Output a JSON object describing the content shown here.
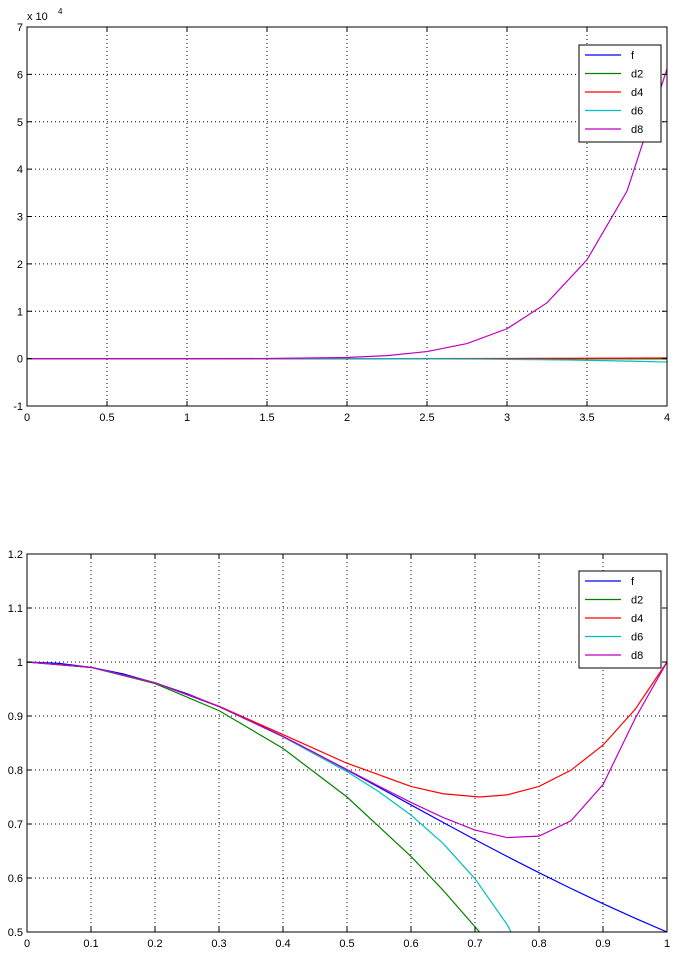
{
  "chart_data": [
    {
      "type": "line",
      "title": "",
      "xlabel": "",
      "ylabel": "",
      "xlim": [
        0,
        4
      ],
      "ylim": [
        -1,
        7
      ],
      "y_exponent_label": "x 10",
      "y_exponent_power": "4",
      "x_ticks": [
        0,
        0.5,
        1,
        1.5,
        2,
        2.5,
        3,
        3.5,
        4
      ],
      "x_tick_labels": [
        "0",
        "0.5",
        "1",
        "1.5",
        "2",
        "2.5",
        "3",
        "3.5",
        "4"
      ],
      "y_ticks": [
        -1,
        0,
        1,
        2,
        3,
        4,
        5,
        6,
        7
      ],
      "y_tick_labels": [
        "-1",
        "0",
        "1",
        "2",
        "3",
        "4",
        "5",
        "6",
        "7"
      ],
      "grid": true,
      "legend_position": "top-right",
      "series": [
        {
          "name": "f",
          "color": "#0000ff",
          "x": [
            0,
            2,
            4
          ],
          "y": [
            0,
            0,
            0
          ]
        },
        {
          "name": "d2",
          "color": "#008000",
          "x": [
            0,
            2,
            3,
            4
          ],
          "y": [
            0,
            -0.0006,
            -0.0021,
            -0.0048
          ]
        },
        {
          "name": "d4",
          "color": "#ff0000",
          "x": [
            0,
            2,
            3,
            3.5,
            4
          ],
          "y": [
            0,
            0.0005,
            0.0036,
            0.0074,
            0.0135
          ]
        },
        {
          "name": "d6",
          "color": "#00bfbf",
          "x": [
            0,
            1,
            1.5,
            2,
            2.5,
            2.8,
            3,
            3.2,
            3.4,
            3.6,
            3.8,
            4
          ],
          "y": [
            0,
            0,
            -0.0002,
            -0.0013,
            -0.0049,
            -0.0097,
            -0.0148,
            -0.0217,
            -0.0306,
            -0.0418,
            -0.0556,
            -0.0728
          ]
        },
        {
          "name": "d8",
          "color": "#bf00bf",
          "x": [
            0,
            1,
            1.5,
            2,
            2.25,
            2.5,
            2.75,
            3,
            3.25,
            3.5,
            3.75,
            4
          ],
          "y": [
            0,
            0,
            0.0023,
            0.0243,
            0.0634,
            0.1484,
            0.3171,
            0.6306,
            1.1778,
            2.0864,
            3.5342,
            6.1144
          ]
        }
      ]
    },
    {
      "type": "line",
      "title": "",
      "xlabel": "",
      "ylabel": "",
      "xlim": [
        0,
        1
      ],
      "ylim": [
        0.5,
        1.2
      ],
      "x_ticks": [
        0,
        0.1,
        0.2,
        0.3,
        0.4,
        0.5,
        0.6,
        0.7,
        0.8,
        0.9,
        1
      ],
      "x_tick_labels": [
        "0",
        "0.1",
        "0.2",
        "0.3",
        "0.4",
        "0.5",
        "0.6",
        "0.7",
        "0.8",
        "0.9",
        "1"
      ],
      "y_ticks": [
        0.5,
        0.6,
        0.7,
        0.8,
        0.9,
        1,
        1.1,
        1.2
      ],
      "y_tick_labels": [
        "0.5",
        "0.6",
        "0.7",
        "0.8",
        "0.9",
        "1",
        "1.1",
        "1.2"
      ],
      "grid": true,
      "legend_position": "top-right",
      "series": [
        {
          "name": "f",
          "color": "#0000ff",
          "x": [
            0,
            0.05,
            0.1,
            0.15,
            0.2,
            0.25,
            0.3,
            0.35,
            0.4,
            0.45,
            0.5,
            0.55,
            0.6,
            0.65,
            0.7,
            0.75,
            0.8,
            0.85,
            0.9,
            0.95,
            1
          ],
          "y": [
            1,
            0.9975,
            0.9901,
            0.978,
            0.9615,
            0.9412,
            0.9174,
            0.8909,
            0.8621,
            0.8316,
            0.8,
            0.7678,
            0.7353,
            0.703,
            0.6711,
            0.64,
            0.6098,
            0.5806,
            0.5525,
            0.5256,
            0.5
          ]
        },
        {
          "name": "d2",
          "color": "#008000",
          "x": [
            0,
            0.1,
            0.2,
            0.3,
            0.4,
            0.5,
            0.6,
            0.65,
            0.7071
          ],
          "y": [
            1,
            0.99,
            0.96,
            0.91,
            0.84,
            0.75,
            0.64,
            0.5775,
            0.5
          ]
        },
        {
          "name": "d4",
          "color": "#ff0000",
          "x": [
            0,
            0.1,
            0.2,
            0.3,
            0.4,
            0.5,
            0.6,
            0.65,
            0.7071,
            0.75,
            0.8,
            0.85,
            0.9,
            0.95,
            1
          ],
          "y": [
            1,
            0.9901,
            0.9616,
            0.9181,
            0.8656,
            0.8125,
            0.7696,
            0.756,
            0.75,
            0.7539,
            0.7696,
            0.7997,
            0.8461,
            0.912,
            1
          ]
        },
        {
          "name": "d6",
          "color": "#00bfbf",
          "x": [
            0,
            0.1,
            0.2,
            0.3,
            0.4,
            0.5,
            0.55,
            0.6,
            0.65,
            0.7,
            0.75,
            0.8
          ],
          "y": [
            1,
            0.9901,
            0.9615,
            0.9174,
            0.8615,
            0.7969,
            0.7597,
            0.7165,
            0.6642,
            0.5985,
            0.5141,
            0.4037
          ]
        },
        {
          "name": "d8",
          "color": "#bf00bf",
          "x": [
            0,
            0.1,
            0.2,
            0.3,
            0.4,
            0.5,
            0.55,
            0.6,
            0.65,
            0.7,
            0.75,
            0.8,
            0.85,
            0.9,
            0.95,
            1
          ],
          "y": [
            1,
            0.9901,
            0.9615,
            0.9174,
            0.8622,
            0.8008,
            0.7699,
            0.7399,
            0.7121,
            0.6887,
            0.6749,
            0.6775,
            0.706,
            0.7728,
            0.8949,
            1
          ]
        }
      ]
    }
  ]
}
